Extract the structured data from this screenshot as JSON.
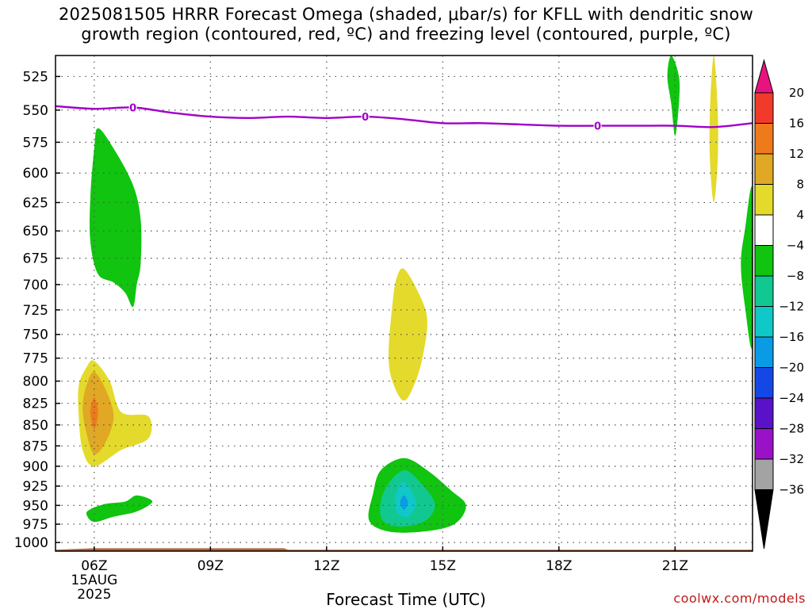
{
  "title": {
    "line1": "2025081505 HRRR Forecast Omega (shaded, μbar/s) for KFLL with dendritic snow",
    "line2": "growth region (contoured, red, ºC) and freezing level (contoured, purple, ºC)"
  },
  "credit": "coolwx.com/models",
  "chart_data": {
    "type": "heatmap",
    "title": "2025081505 HRRR Forecast Omega (shaded, μbar/s) for KFLL with dendritic snow growth region (contoured, red, ºC) and freezing level (contoured, purple, ºC)",
    "xlabel": "Forecast Time (UTC)",
    "ylabel": "",
    "x_ticks": [
      {
        "label": "06Z",
        "sub": [
          "15AUG",
          "2025"
        ],
        "hour": 6
      },
      {
        "label": "09Z",
        "hour": 9
      },
      {
        "label": "12Z",
        "hour": 12
      },
      {
        "label": "15Z",
        "hour": 15
      },
      {
        "label": "18Z",
        "hour": 18
      },
      {
        "label": "21Z",
        "hour": 21
      }
    ],
    "xlim": [
      5.0,
      23.0
    ],
    "y_ticks": [
      525,
      550,
      575,
      600,
      625,
      650,
      675,
      700,
      725,
      750,
      775,
      800,
      825,
      850,
      875,
      900,
      925,
      950,
      975,
      1000
    ],
    "ylim": [
      1012,
      510
    ],
    "y_scale": "log",
    "grid": true,
    "colorbar": {
      "labels": [
        "20",
        "16",
        "12",
        "8",
        "4",
        "-4",
        "-8",
        "-12",
        "-16",
        "-20",
        "-24",
        "-28",
        "-32",
        "-36"
      ],
      "colors": [
        "#e8137f",
        "#f23a2a",
        "#ee7a1c",
        "#e0a824",
        "#e4da2c",
        "#ffffff",
        "#10c410",
        "#12c891",
        "#10c8c8",
        "#0a9be6",
        "#1448e6",
        "#5a12c8",
        "#9a12c8",
        "#a3a3a3",
        "#000000"
      ]
    },
    "freezing_level": {
      "label": "0",
      "color": "#a000c8",
      "points": [
        [
          5.0,
          547
        ],
        [
          6.0,
          549
        ],
        [
          7.0,
          548
        ],
        [
          8.0,
          552
        ],
        [
          9.0,
          555
        ],
        [
          10.0,
          556
        ],
        [
          11.0,
          555
        ],
        [
          12.0,
          556
        ],
        [
          13.0,
          555
        ],
        [
          14.0,
          557
        ],
        [
          15.0,
          560
        ],
        [
          16.0,
          560
        ],
        [
          17.0,
          561
        ],
        [
          18.0,
          562
        ],
        [
          19.0,
          562
        ],
        [
          20.0,
          562
        ],
        [
          21.0,
          562
        ],
        [
          22.0,
          563
        ],
        [
          23.0,
          560
        ]
      ]
    },
    "omega_regions": [
      {
        "level": "-8",
        "color": "#10c410",
        "points": [
          [
            6.1,
            564
          ],
          [
            6.5,
            580
          ],
          [
            7.0,
            610
          ],
          [
            7.2,
            640
          ],
          [
            7.2,
            680
          ],
          [
            7.1,
            700
          ],
          [
            7.0,
            722
          ],
          [
            6.8,
            708
          ],
          [
            6.5,
            698
          ],
          [
            6.1,
            690
          ],
          [
            5.9,
            660
          ],
          [
            5.9,
            620
          ],
          [
            6.0,
            580
          ]
        ]
      },
      {
        "level": "4",
        "color": "#e4da2c",
        "points": [
          [
            6.0,
            778
          ],
          [
            6.4,
            800
          ],
          [
            6.7,
            835
          ],
          [
            7.4,
            840
          ],
          [
            7.4,
            866
          ],
          [
            6.7,
            880
          ],
          [
            6.0,
            900
          ],
          [
            5.7,
            880
          ],
          [
            5.6,
            840
          ],
          [
            5.6,
            805
          ],
          [
            5.8,
            785
          ]
        ]
      },
      {
        "level": "8",
        "color": "#e0a824",
        "points": [
          [
            6.0,
            790
          ],
          [
            6.3,
            810
          ],
          [
            6.5,
            840
          ],
          [
            6.3,
            870
          ],
          [
            6.0,
            885
          ],
          [
            5.8,
            860
          ],
          [
            5.7,
            830
          ],
          [
            5.8,
            805
          ]
        ]
      },
      {
        "level": "12",
        "color": "#ee7a1c",
        "points": [
          [
            6.0,
            818
          ],
          [
            6.1,
            835
          ],
          [
            6.0,
            855
          ],
          [
            5.9,
            835
          ]
        ]
      },
      {
        "level": "-8",
        "color": "#10c410",
        "points": [
          [
            5.9,
            955
          ],
          [
            6.3,
            948
          ],
          [
            6.8,
            945
          ],
          [
            7.1,
            937
          ],
          [
            7.5,
            945
          ],
          [
            7.1,
            958
          ],
          [
            6.5,
            965
          ],
          [
            6.0,
            972
          ],
          [
            5.8,
            962
          ]
        ]
      },
      {
        "level": "4",
        "color": "#e4da2c",
        "points": [
          [
            14.0,
            685
          ],
          [
            14.4,
            710
          ],
          [
            14.6,
            735
          ],
          [
            14.5,
            770
          ],
          [
            14.3,
            800
          ],
          [
            14.0,
            822
          ],
          [
            13.7,
            800
          ],
          [
            13.6,
            770
          ],
          [
            13.7,
            720
          ],
          [
            13.8,
            695
          ]
        ]
      },
      {
        "level": "-8",
        "color": "#10c410",
        "points": [
          [
            14.0,
            890
          ],
          [
            14.6,
            905
          ],
          [
            15.2,
            930
          ],
          [
            15.6,
            950
          ],
          [
            15.3,
            975
          ],
          [
            14.5,
            985
          ],
          [
            13.6,
            985
          ],
          [
            13.1,
            970
          ],
          [
            13.2,
            935
          ],
          [
            13.4,
            905
          ]
        ]
      },
      {
        "level": "-12",
        "color": "#12c891",
        "points": [
          [
            14.0,
            905
          ],
          [
            14.5,
            925
          ],
          [
            14.8,
            950
          ],
          [
            14.5,
            972
          ],
          [
            13.8,
            978
          ],
          [
            13.4,
            965
          ],
          [
            13.5,
            930
          ]
        ]
      },
      {
        "level": "-16",
        "color": "#10c8c8",
        "points": [
          [
            14.0,
            920
          ],
          [
            14.3,
            945
          ],
          [
            14.1,
            965
          ],
          [
            13.8,
            958
          ],
          [
            13.8,
            935
          ]
        ]
      },
      {
        "level": "-20",
        "color": "#0a9be6",
        "points": [
          [
            14.0,
            937
          ],
          [
            14.1,
            946
          ],
          [
            14.0,
            956
          ],
          [
            13.9,
            946
          ]
        ]
      },
      {
        "level": "-8",
        "color": "#10c410",
        "points": [
          [
            20.9,
            510
          ],
          [
            21.1,
            525
          ],
          [
            21.1,
            545
          ],
          [
            21.0,
            570
          ],
          [
            20.9,
            545
          ],
          [
            20.8,
            525
          ]
        ]
      },
      {
        "level": "4",
        "color": "#e4da2c",
        "points": [
          [
            22.0,
            510
          ],
          [
            22.1,
            550
          ],
          [
            22.1,
            590
          ],
          [
            22.0,
            625
          ],
          [
            21.9,
            590
          ],
          [
            21.9,
            550
          ]
        ]
      },
      {
        "level": "-8",
        "color": "#10c410",
        "points": [
          [
            23.0,
            615
          ],
          [
            23.0,
            760
          ],
          [
            22.8,
            720
          ],
          [
            22.7,
            680
          ],
          [
            22.8,
            650
          ]
        ]
      }
    ],
    "ground": {
      "color": "#b4663c",
      "top": [
        [
          5.0,
          1010
        ],
        [
          6.0,
          1008
        ],
        [
          10.9,
          1008
        ],
        [
          11.0,
          1010
        ],
        [
          23.0,
          1010
        ]
      ]
    }
  }
}
